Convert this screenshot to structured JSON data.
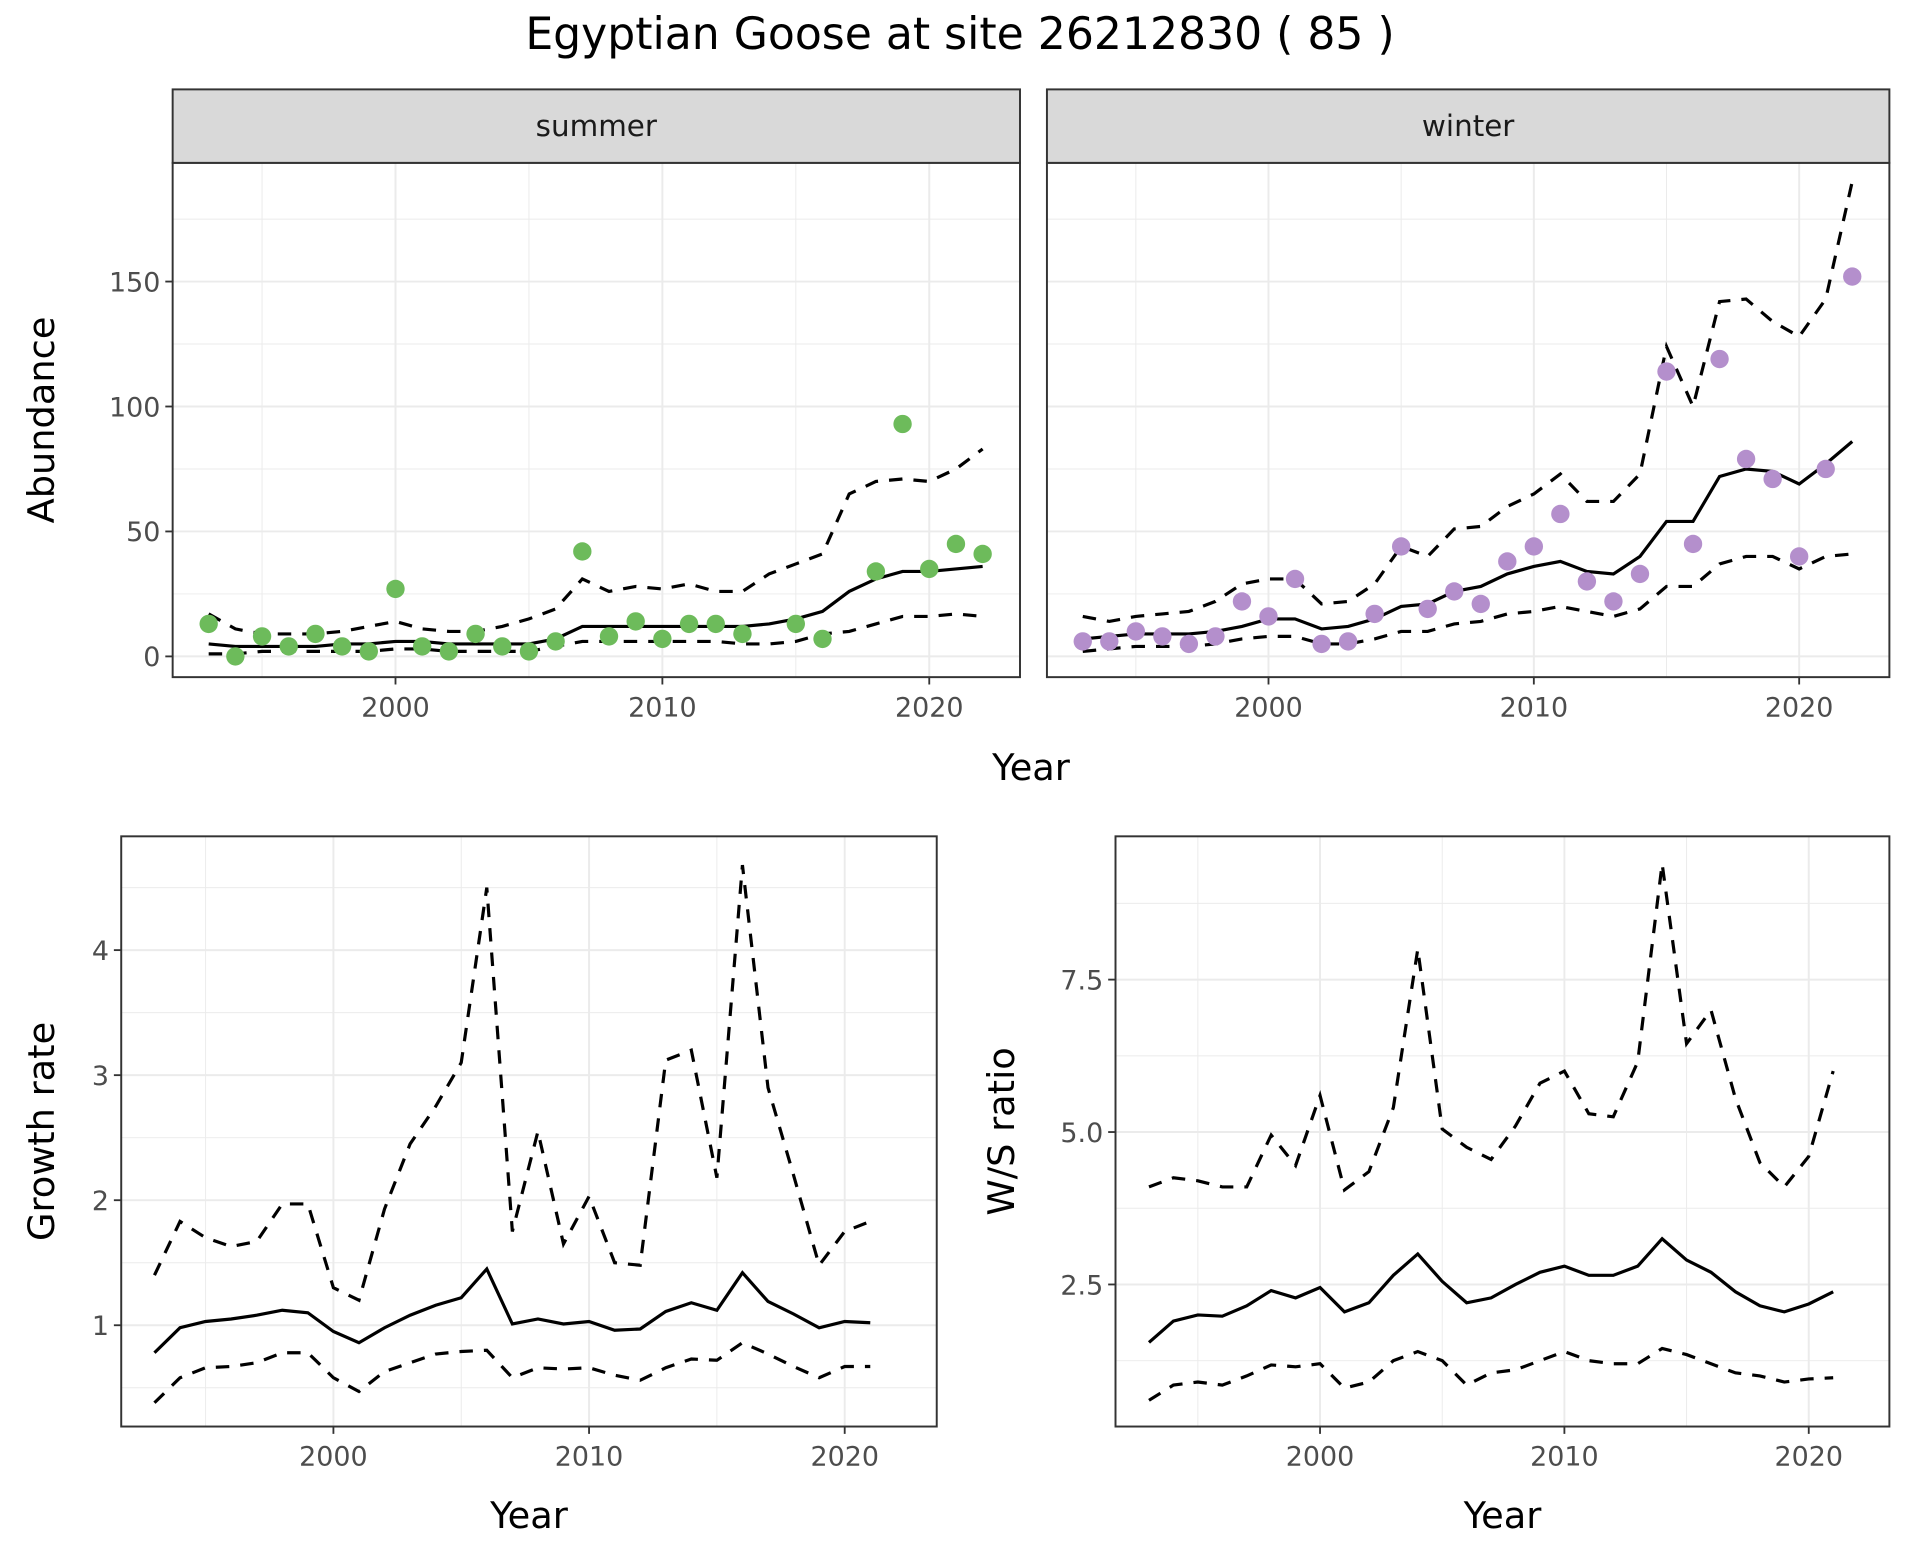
{
  "title": "Egyptian Goose at site 26212830 ( 85 )",
  "chart_data": [
    {
      "type": "line",
      "xlabel": "Year",
      "ylabel": "Abundance",
      "x": [
        1993,
        1994,
        1995,
        1996,
        1997,
        1998,
        1999,
        2000,
        2001,
        2002,
        2003,
        2004,
        2005,
        2006,
        2007,
        2008,
        2009,
        2010,
        2011,
        2012,
        2013,
        2014,
        2015,
        2016,
        2017,
        2018,
        2019,
        2020,
        2021,
        2022
      ],
      "xlim": [
        1991.65,
        2023.4
      ],
      "xticks": [
        2000,
        2010,
        2020
      ],
      "ylim": [
        -8.3,
        197.5
      ],
      "yticks": [
        0,
        50,
        100,
        150
      ],
      "grid": true,
      "panels": [
        {
          "strip": "summer",
          "points": {
            "color": "#6dbb5b",
            "values": [
              13,
              0,
              8,
              4,
              9,
              4,
              2,
              27,
              4,
              2,
              9,
              4,
              2,
              6,
              42,
              8,
              14,
              7,
              13,
              13,
              9,
              null,
              13,
              7,
              null,
              34,
              93,
              35,
              45,
              41
            ]
          },
          "series": [
            {
              "linestyle": "solid",
              "color": "#000000",
              "values": [
                5,
                4,
                4,
                4,
                4,
                5,
                5,
                6,
                6,
                5,
                5,
                5,
                5,
                7,
                12,
                12,
                12,
                12,
                12,
                12,
                12,
                13,
                15,
                18,
                26,
                31,
                34,
                34,
                35,
                36
              ]
            },
            {
              "linestyle": "dashed",
              "color": "#000000",
              "values": [
                1,
                1,
                2,
                2,
                2,
                2,
                2,
                3,
                3,
                2,
                2,
                2,
                2,
                4,
                6,
                6,
                6,
                6,
                6,
                6,
                5,
                5,
                6,
                9,
                10,
                13,
                16,
                16,
                17,
                16
              ]
            },
            {
              "linestyle": "dashed",
              "color": "#000000",
              "values": [
                17,
                11,
                9,
                9,
                9,
                10,
                12,
                14,
                11,
                10,
                10,
                12,
                15,
                19,
                31,
                26,
                28,
                27,
                29,
                26,
                26,
                33,
                37,
                41,
                65,
                70,
                71,
                70,
                75,
                83
              ]
            }
          ]
        },
        {
          "strip": "winter",
          "points": {
            "color": "#b48fcc",
            "values": [
              6,
              6,
              10,
              8,
              5,
              8,
              22,
              16,
              31,
              5,
              6,
              17,
              44,
              19,
              26,
              21,
              38,
              44,
              57,
              30,
              22,
              33,
              114,
              45,
              119,
              79,
              71,
              40,
              75,
              152
            ]
          },
          "series": [
            {
              "linestyle": "solid",
              "color": "#000000",
              "values": [
                7,
                8,
                9,
                9,
                9,
                10,
                12,
                15,
                15,
                11,
                12,
                15,
                20,
                21,
                26,
                28,
                33,
                36,
                38,
                34,
                33,
                40,
                54,
                54,
                72,
                75,
                74,
                69,
                77,
                86
              ]
            },
            {
              "linestyle": "dashed",
              "color": "#000000",
              "values": [
                2,
                3,
                4,
                4,
                4,
                5,
                7,
                8,
                8,
                5,
                5,
                7,
                10,
                10,
                13,
                14,
                17,
                18,
                20,
                18,
                16,
                19,
                28,
                28,
                37,
                40,
                40,
                35,
                40,
                41
              ]
            },
            {
              "linestyle": "dashed",
              "color": "#000000",
              "values": [
                16,
                14,
                16,
                17,
                18,
                22,
                29,
                31,
                31,
                21,
                22,
                29,
                44,
                40,
                51,
                52,
                60,
                65,
                73,
                62,
                62,
                73,
                124,
                100,
                142,
                143,
                134,
                128,
                143,
                190
              ]
            }
          ]
        }
      ]
    },
    {
      "type": "line",
      "xlabel": "Year",
      "ylabel": "Growth rate",
      "x": [
        1993,
        1994,
        1995,
        1996,
        1997,
        1998,
        1999,
        2000,
        2001,
        2002,
        2003,
        2004,
        2005,
        2006,
        2007,
        2008,
        2009,
        2010,
        2011,
        2012,
        2013,
        2014,
        2015,
        2016,
        2017,
        2018,
        2019,
        2020,
        2021
      ],
      "xlim": [
        1991.7,
        2023.6
      ],
      "xticks": [
        2000,
        2010,
        2020
      ],
      "ylim": [
        0.19,
        4.91
      ],
      "yticks": [
        1,
        2,
        3,
        4
      ],
      "grid": true,
      "series": [
        {
          "linestyle": "solid",
          "color": "#000000",
          "values": [
            0.78,
            0.98,
            1.03,
            1.05,
            1.08,
            1.12,
            1.1,
            0.95,
            0.86,
            0.98,
            1.08,
            1.16,
            1.22,
            1.45,
            1.01,
            1.05,
            1.01,
            1.03,
            0.96,
            0.97,
            1.11,
            1.18,
            1.12,
            1.42,
            1.19,
            1.09,
            0.98,
            1.03,
            1.02
          ]
        },
        {
          "linestyle": "dashed",
          "color": "#000000",
          "values": [
            0.38,
            0.58,
            0.66,
            0.67,
            0.7,
            0.78,
            0.78,
            0.58,
            0.47,
            0.63,
            0.7,
            0.77,
            0.79,
            0.8,
            0.58,
            0.66,
            0.65,
            0.66,
            0.6,
            0.56,
            0.66,
            0.73,
            0.72,
            0.86,
            0.77,
            0.67,
            0.58,
            0.67,
            0.67
          ]
        },
        {
          "linestyle": "dashed",
          "color": "#000000",
          "values": [
            1.4,
            1.83,
            1.7,
            1.63,
            1.67,
            1.97,
            1.97,
            1.3,
            1.2,
            1.93,
            2.45,
            2.75,
            3.1,
            4.5,
            1.75,
            2.55,
            1.65,
            2.03,
            1.5,
            1.48,
            3.12,
            3.2,
            2.18,
            4.68,
            2.9,
            2.2,
            1.48,
            1.75,
            1.83
          ]
        }
      ]
    },
    {
      "type": "line",
      "xlabel": "Year",
      "ylabel": "W/S ratio",
      "x": [
        1993,
        1994,
        1995,
        1996,
        1997,
        1998,
        1999,
        2000,
        2001,
        2002,
        2003,
        2004,
        2005,
        2006,
        2007,
        2008,
        2009,
        2010,
        2011,
        2012,
        2013,
        2014,
        2015,
        2016,
        2017,
        2018,
        2019,
        2020,
        2021
      ],
      "xlim": [
        1991.63,
        2023.3
      ],
      "xticks": [
        2000,
        2010,
        2020
      ],
      "ylim": [
        0.17,
        9.85
      ],
      "yticks": [
        2.5,
        {
          "value": 5,
          "label": "5.0"
        },
        7.5
      ],
      "grid": true,
      "series": [
        {
          "linestyle": "solid",
          "color": "#000000",
          "values": [
            1.55,
            1.9,
            2.0,
            1.98,
            2.15,
            2.4,
            2.28,
            2.45,
            2.05,
            2.2,
            2.65,
            3.0,
            2.55,
            2.2,
            2.28,
            2.5,
            2.7,
            2.8,
            2.65,
            2.65,
            2.8,
            3.25,
            2.9,
            2.7,
            2.38,
            2.15,
            2.05,
            2.18,
            2.38
          ]
        },
        {
          "linestyle": "dashed",
          "color": "#000000",
          "values": [
            0.6,
            0.85,
            0.9,
            0.85,
            1.0,
            1.18,
            1.15,
            1.2,
            0.8,
            0.9,
            1.25,
            1.4,
            1.25,
            0.85,
            1.05,
            1.1,
            1.25,
            1.4,
            1.25,
            1.2,
            1.2,
            1.45,
            1.35,
            1.2,
            1.05,
            1.0,
            0.9,
            0.95,
            0.97
          ]
        },
        {
          "linestyle": "dashed",
          "color": "#000000",
          "values": [
            4.1,
            4.25,
            4.2,
            4.1,
            4.1,
            4.95,
            4.45,
            5.6,
            4.05,
            4.35,
            5.4,
            8.0,
            5.05,
            4.75,
            4.55,
            5.1,
            5.8,
            6.0,
            5.3,
            5.25,
            6.15,
            9.4,
            6.45,
            7.0,
            5.55,
            4.5,
            4.1,
            4.6,
            6.0
          ]
        }
      ]
    }
  ]
}
